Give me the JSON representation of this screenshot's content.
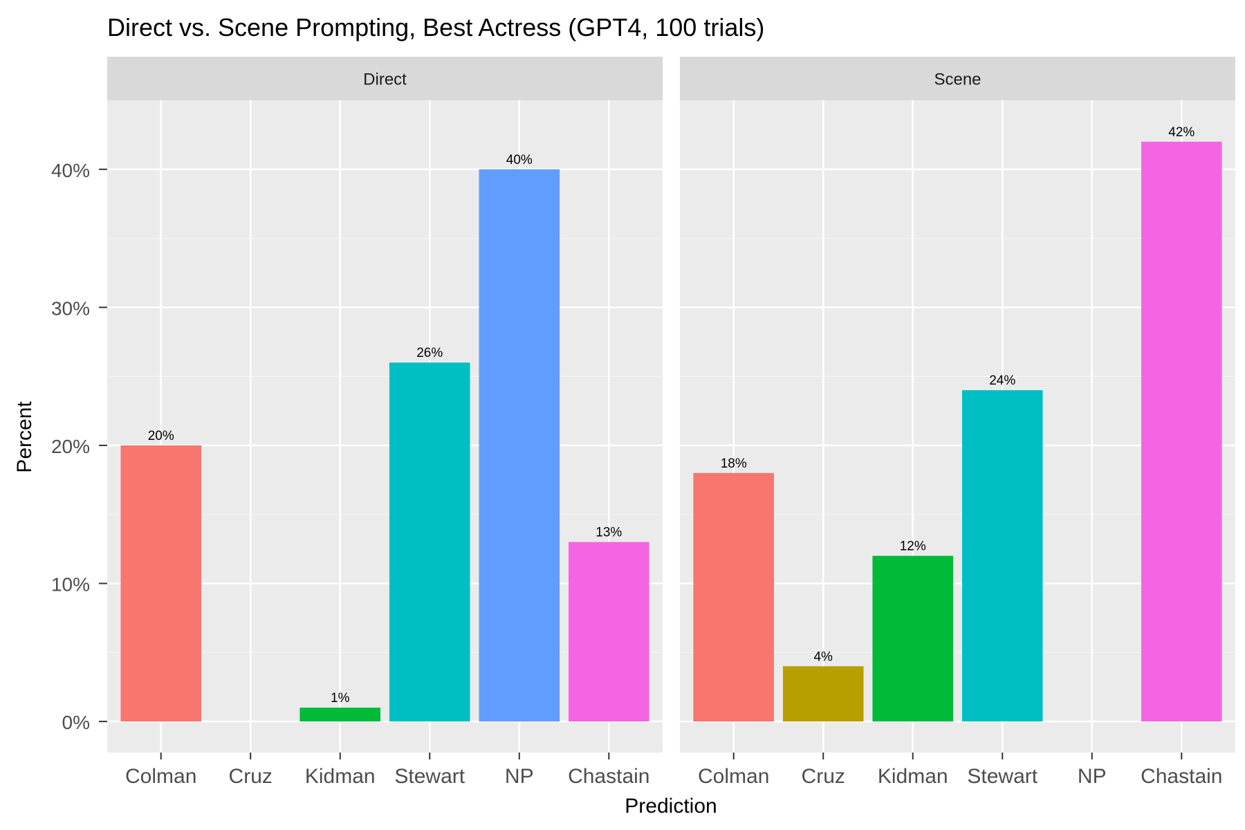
{
  "chart_data": {
    "type": "bar",
    "title": "Direct vs. Scene Prompting, Best Actress (GPT4, 100 trials)",
    "xlabel": "Prediction",
    "ylabel": "Percent",
    "categories": [
      "Colman",
      "Cruz",
      "Kidman",
      "Stewart",
      "NP",
      "Chastain"
    ],
    "category_colors": [
      "#F8766D",
      "#B79F00",
      "#00BA38",
      "#00BFC4",
      "#619CFF",
      "#F564E3"
    ],
    "ylim": [
      0,
      45
    ],
    "yticks": [
      0,
      10,
      20,
      30,
      40
    ],
    "ytick_labels": [
      "0%",
      "10%",
      "20%",
      "30%",
      "40%"
    ],
    "grid": true,
    "legend": "none",
    "panels": [
      {
        "name": "Direct",
        "values": [
          20,
          0,
          1,
          26,
          40,
          13
        ],
        "labels": [
          "20%",
          "",
          "1%",
          "26%",
          "40%",
          "13%"
        ]
      },
      {
        "name": "Scene",
        "values": [
          18,
          4,
          12,
          24,
          0,
          42
        ],
        "labels": [
          "18%",
          "4%",
          "12%",
          "24%",
          "",
          "42%"
        ]
      }
    ]
  }
}
